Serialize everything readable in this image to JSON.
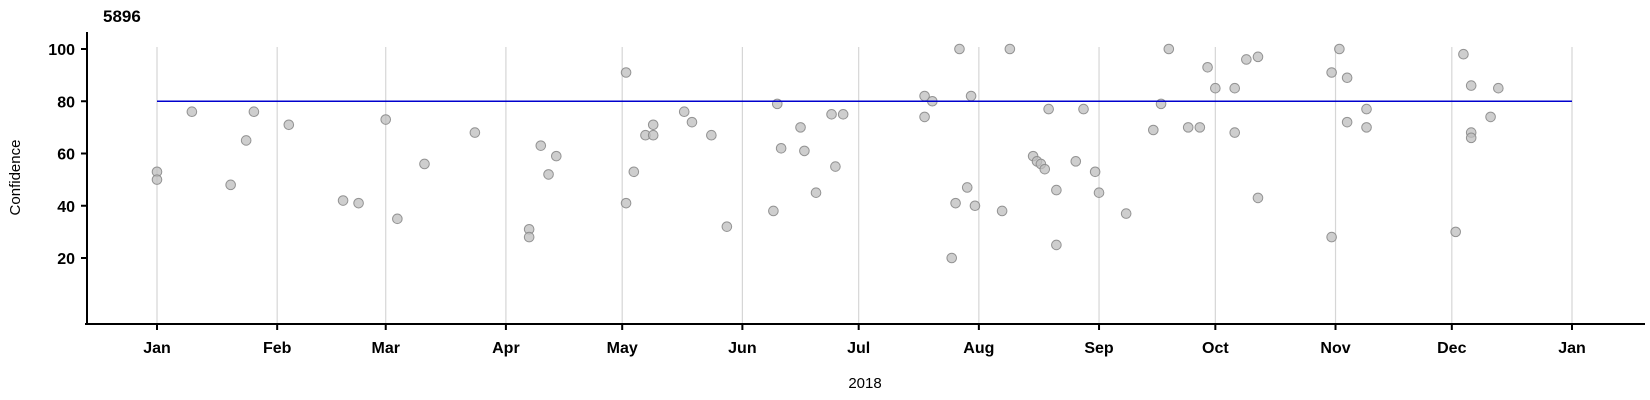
{
  "title": "5896",
  "colors": {
    "point_fill": "#bebebe",
    "point_stroke": "#8a8a8a",
    "reference_line": "#0000cd",
    "gridline": "#d6d6d6",
    "axis": "#000000",
    "text": "#000000"
  },
  "chart_data": {
    "type": "scatter",
    "title": "5896",
    "xlabel": "2018",
    "ylabel": "Confidence",
    "ylim": [
      0,
      105
    ],
    "grid": "vertical-month-gridlines",
    "legend": "none",
    "y_ticks": [
      20,
      40,
      60,
      80,
      100
    ],
    "x_unit": "day_of_year_2018",
    "x_ticks": [
      {
        "label": "Jan",
        "day": 0
      },
      {
        "label": "Feb",
        "day": 31
      },
      {
        "label": "Mar",
        "day": 59
      },
      {
        "label": "Apr",
        "day": 90
      },
      {
        "label": "May",
        "day": 120
      },
      {
        "label": "Jun",
        "day": 151
      },
      {
        "label": "Jul",
        "day": 181
      },
      {
        "label": "Aug",
        "day": 212
      },
      {
        "label": "Sep",
        "day": 243
      },
      {
        "label": "Oct",
        "day": 273
      },
      {
        "label": "Nov",
        "day": 304
      },
      {
        "label": "Dec",
        "day": 334
      },
      {
        "label": "Jan",
        "day": 365
      }
    ],
    "reference_line": {
      "value": 80,
      "span_days": [
        0,
        365
      ]
    },
    "points": [
      {
        "day": 0,
        "confidence": 53
      },
      {
        "day": 0,
        "confidence": 50
      },
      {
        "day": 9,
        "confidence": 76
      },
      {
        "day": 19,
        "confidence": 48
      },
      {
        "day": 23,
        "confidence": 65
      },
      {
        "day": 25,
        "confidence": 76
      },
      {
        "day": 34,
        "confidence": 71
      },
      {
        "day": 48,
        "confidence": 42
      },
      {
        "day": 52,
        "confidence": 41
      },
      {
        "day": 59,
        "confidence": 73
      },
      {
        "day": 62,
        "confidence": 35
      },
      {
        "day": 69,
        "confidence": 56
      },
      {
        "day": 82,
        "confidence": 68
      },
      {
        "day": 96,
        "confidence": 31
      },
      {
        "day": 96,
        "confidence": 28
      },
      {
        "day": 99,
        "confidence": 63
      },
      {
        "day": 101,
        "confidence": 52
      },
      {
        "day": 103,
        "confidence": 59
      },
      {
        "day": 121,
        "confidence": 91
      },
      {
        "day": 121,
        "confidence": 41
      },
      {
        "day": 123,
        "confidence": 53
      },
      {
        "day": 126,
        "confidence": 67
      },
      {
        "day": 128,
        "confidence": 71
      },
      {
        "day": 128,
        "confidence": 67
      },
      {
        "day": 136,
        "confidence": 76
      },
      {
        "day": 138,
        "confidence": 72
      },
      {
        "day": 143,
        "confidence": 67
      },
      {
        "day": 147,
        "confidence": 32
      },
      {
        "day": 159,
        "confidence": 38
      },
      {
        "day": 160,
        "confidence": 79
      },
      {
        "day": 161,
        "confidence": 62
      },
      {
        "day": 166,
        "confidence": 70
      },
      {
        "day": 167,
        "confidence": 61
      },
      {
        "day": 170,
        "confidence": 45
      },
      {
        "day": 174,
        "confidence": 75
      },
      {
        "day": 175,
        "confidence": 55
      },
      {
        "day": 177,
        "confidence": 75
      },
      {
        "day": 198,
        "confidence": 82
      },
      {
        "day": 198,
        "confidence": 74
      },
      {
        "day": 200,
        "confidence": 80
      },
      {
        "day": 205,
        "confidence": 20
      },
      {
        "day": 206,
        "confidence": 41
      },
      {
        "day": 207,
        "confidence": 100
      },
      {
        "day": 209,
        "confidence": 47
      },
      {
        "day": 210,
        "confidence": 82
      },
      {
        "day": 211,
        "confidence": 40
      },
      {
        "day": 218,
        "confidence": 38
      },
      {
        "day": 220,
        "confidence": 100
      },
      {
        "day": 226,
        "confidence": 59
      },
      {
        "day": 227,
        "confidence": 57
      },
      {
        "day": 228,
        "confidence": 56
      },
      {
        "day": 229,
        "confidence": 54
      },
      {
        "day": 230,
        "confidence": 77
      },
      {
        "day": 232,
        "confidence": 46
      },
      {
        "day": 232,
        "confidence": 25
      },
      {
        "day": 237,
        "confidence": 57
      },
      {
        "day": 239,
        "confidence": 77
      },
      {
        "day": 242,
        "confidence": 53
      },
      {
        "day": 243,
        "confidence": 45
      },
      {
        "day": 250,
        "confidence": 37
      },
      {
        "day": 257,
        "confidence": 69
      },
      {
        "day": 259,
        "confidence": 79
      },
      {
        "day": 261,
        "confidence": 100
      },
      {
        "day": 266,
        "confidence": 70
      },
      {
        "day": 269,
        "confidence": 70
      },
      {
        "day": 271,
        "confidence": 93
      },
      {
        "day": 273,
        "confidence": 85
      },
      {
        "day": 278,
        "confidence": 85
      },
      {
        "day": 278,
        "confidence": 68
      },
      {
        "day": 281,
        "confidence": 96
      },
      {
        "day": 284,
        "confidence": 97
      },
      {
        "day": 284,
        "confidence": 43
      },
      {
        "day": 303,
        "confidence": 91
      },
      {
        "day": 303,
        "confidence": 28
      },
      {
        "day": 305,
        "confidence": 100
      },
      {
        "day": 307,
        "confidence": 89
      },
      {
        "day": 307,
        "confidence": 72
      },
      {
        "day": 312,
        "confidence": 77
      },
      {
        "day": 312,
        "confidence": 70
      },
      {
        "day": 335,
        "confidence": 30
      },
      {
        "day": 337,
        "confidence": 98
      },
      {
        "day": 339,
        "confidence": 86
      },
      {
        "day": 339,
        "confidence": 68
      },
      {
        "day": 339,
        "confidence": 66
      },
      {
        "day": 344,
        "confidence": 74
      },
      {
        "day": 346,
        "confidence": 85
      }
    ]
  }
}
